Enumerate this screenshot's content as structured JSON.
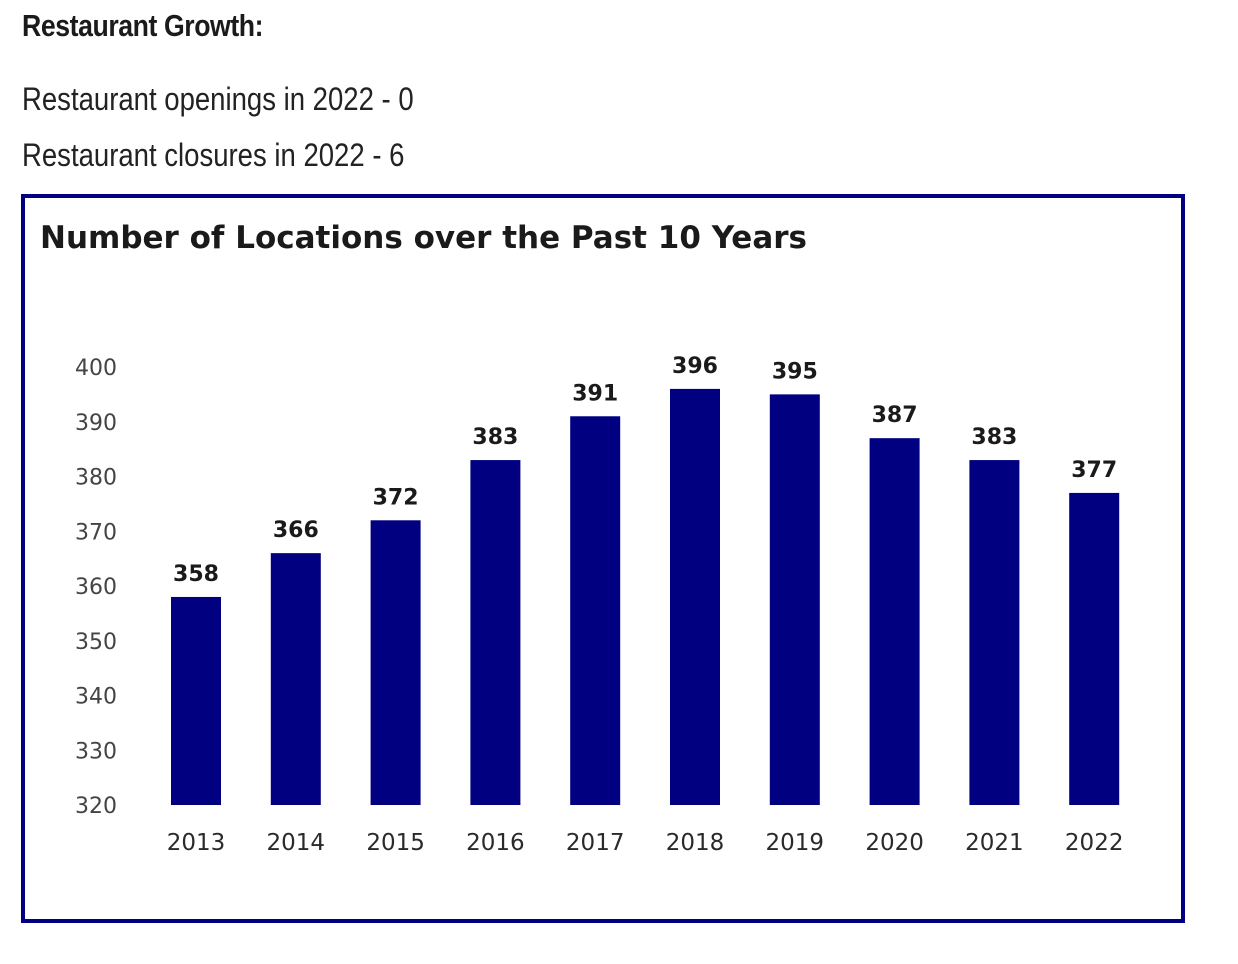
{
  "section": {
    "heading": "Restaurant Growth:",
    "openings_text": "Restaurant openings in 2022 - 0",
    "closures_text": "Restaurant closures in 2022 - 6"
  },
  "colors": {
    "bar": "#000080",
    "frame": "#000080"
  },
  "chart_data": {
    "type": "bar",
    "title": "Number of Locations over the Past 10 Years",
    "categories": [
      "2013",
      "2014",
      "2015",
      "2016",
      "2017",
      "2018",
      "2019",
      "2020",
      "2021",
      "2022"
    ],
    "values": [
      358,
      366,
      372,
      383,
      391,
      396,
      395,
      387,
      383,
      377
    ],
    "data_labels": [
      "358",
      "366",
      "372",
      "383",
      "391",
      "396",
      "395",
      "387",
      "383",
      "377"
    ],
    "yticks": [
      "320",
      "330",
      "340",
      "350",
      "360",
      "370",
      "380",
      "390",
      "400"
    ],
    "ylim": [
      320,
      400
    ],
    "xlabel": "",
    "ylabel": "",
    "grid": false,
    "legend": "none"
  }
}
